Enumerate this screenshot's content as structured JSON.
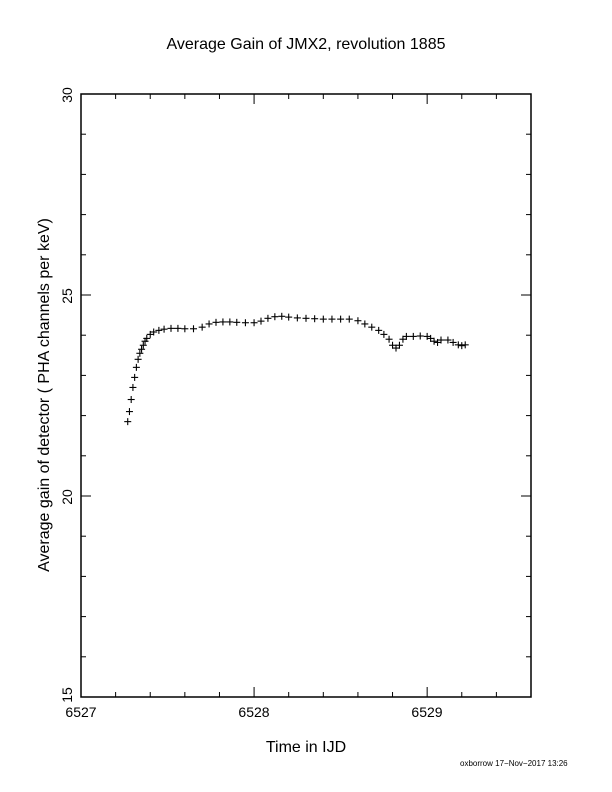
{
  "chart_data": {
    "type": "scatter",
    "title": "Average Gain of JMX2, revolution 1885",
    "xlabel": "Time in IJD",
    "ylabel": "Average gain of detector ( PHA channels per keV)",
    "xlim": [
      6527,
      6529.6
    ],
    "ylim": [
      15,
      30
    ],
    "xticks": [
      "6527",
      "6528",
      "6529"
    ],
    "yticks": [
      "15",
      "20",
      "25",
      "30"
    ],
    "marker": "+",
    "grid": false,
    "series": [
      {
        "points": [
          [
            6527.27,
            21.85
          ],
          [
            6527.28,
            22.1
          ],
          [
            6527.29,
            22.4
          ],
          [
            6527.3,
            22.7
          ],
          [
            6527.31,
            22.95
          ],
          [
            6527.32,
            23.2
          ],
          [
            6527.33,
            23.4
          ],
          [
            6527.34,
            23.55
          ],
          [
            6527.35,
            23.65
          ],
          [
            6527.36,
            23.75
          ],
          [
            6527.37,
            23.85
          ],
          [
            6527.38,
            23.92
          ],
          [
            6527.4,
            24.02
          ],
          [
            6527.42,
            24.08
          ],
          [
            6527.45,
            24.12
          ],
          [
            6527.48,
            24.15
          ],
          [
            6527.52,
            24.17
          ],
          [
            6527.56,
            24.17
          ],
          [
            6527.6,
            24.16
          ],
          [
            6527.65,
            24.16
          ],
          [
            6527.7,
            24.2
          ],
          [
            6527.74,
            24.28
          ],
          [
            6527.78,
            24.32
          ],
          [
            6527.82,
            24.33
          ],
          [
            6527.86,
            24.33
          ],
          [
            6527.9,
            24.32
          ],
          [
            6527.95,
            24.31
          ],
          [
            6528.0,
            24.31
          ],
          [
            6528.04,
            24.35
          ],
          [
            6528.08,
            24.42
          ],
          [
            6528.12,
            24.46
          ],
          [
            6528.16,
            24.47
          ],
          [
            6528.2,
            24.45
          ],
          [
            6528.25,
            24.43
          ],
          [
            6528.3,
            24.42
          ],
          [
            6528.35,
            24.41
          ],
          [
            6528.4,
            24.4
          ],
          [
            6528.45,
            24.4
          ],
          [
            6528.5,
            24.4
          ],
          [
            6528.55,
            24.4
          ],
          [
            6528.6,
            24.36
          ],
          [
            6528.64,
            24.28
          ],
          [
            6528.68,
            24.2
          ],
          [
            6528.72,
            24.12
          ],
          [
            6528.75,
            24.02
          ],
          [
            6528.78,
            23.9
          ],
          [
            6528.8,
            23.75
          ],
          [
            6528.82,
            23.68
          ],
          [
            6528.84,
            23.75
          ],
          [
            6528.86,
            23.9
          ],
          [
            6528.88,
            23.97
          ],
          [
            6528.92,
            23.97
          ],
          [
            6528.96,
            23.98
          ],
          [
            6529.0,
            23.97
          ],
          [
            6529.02,
            23.92
          ],
          [
            6529.04,
            23.85
          ],
          [
            6529.06,
            23.82
          ],
          [
            6529.08,
            23.88
          ],
          [
            6529.12,
            23.88
          ],
          [
            6529.15,
            23.82
          ],
          [
            6529.18,
            23.76
          ],
          [
            6529.2,
            23.74
          ],
          [
            6529.22,
            23.76
          ]
        ]
      }
    ]
  }
}
